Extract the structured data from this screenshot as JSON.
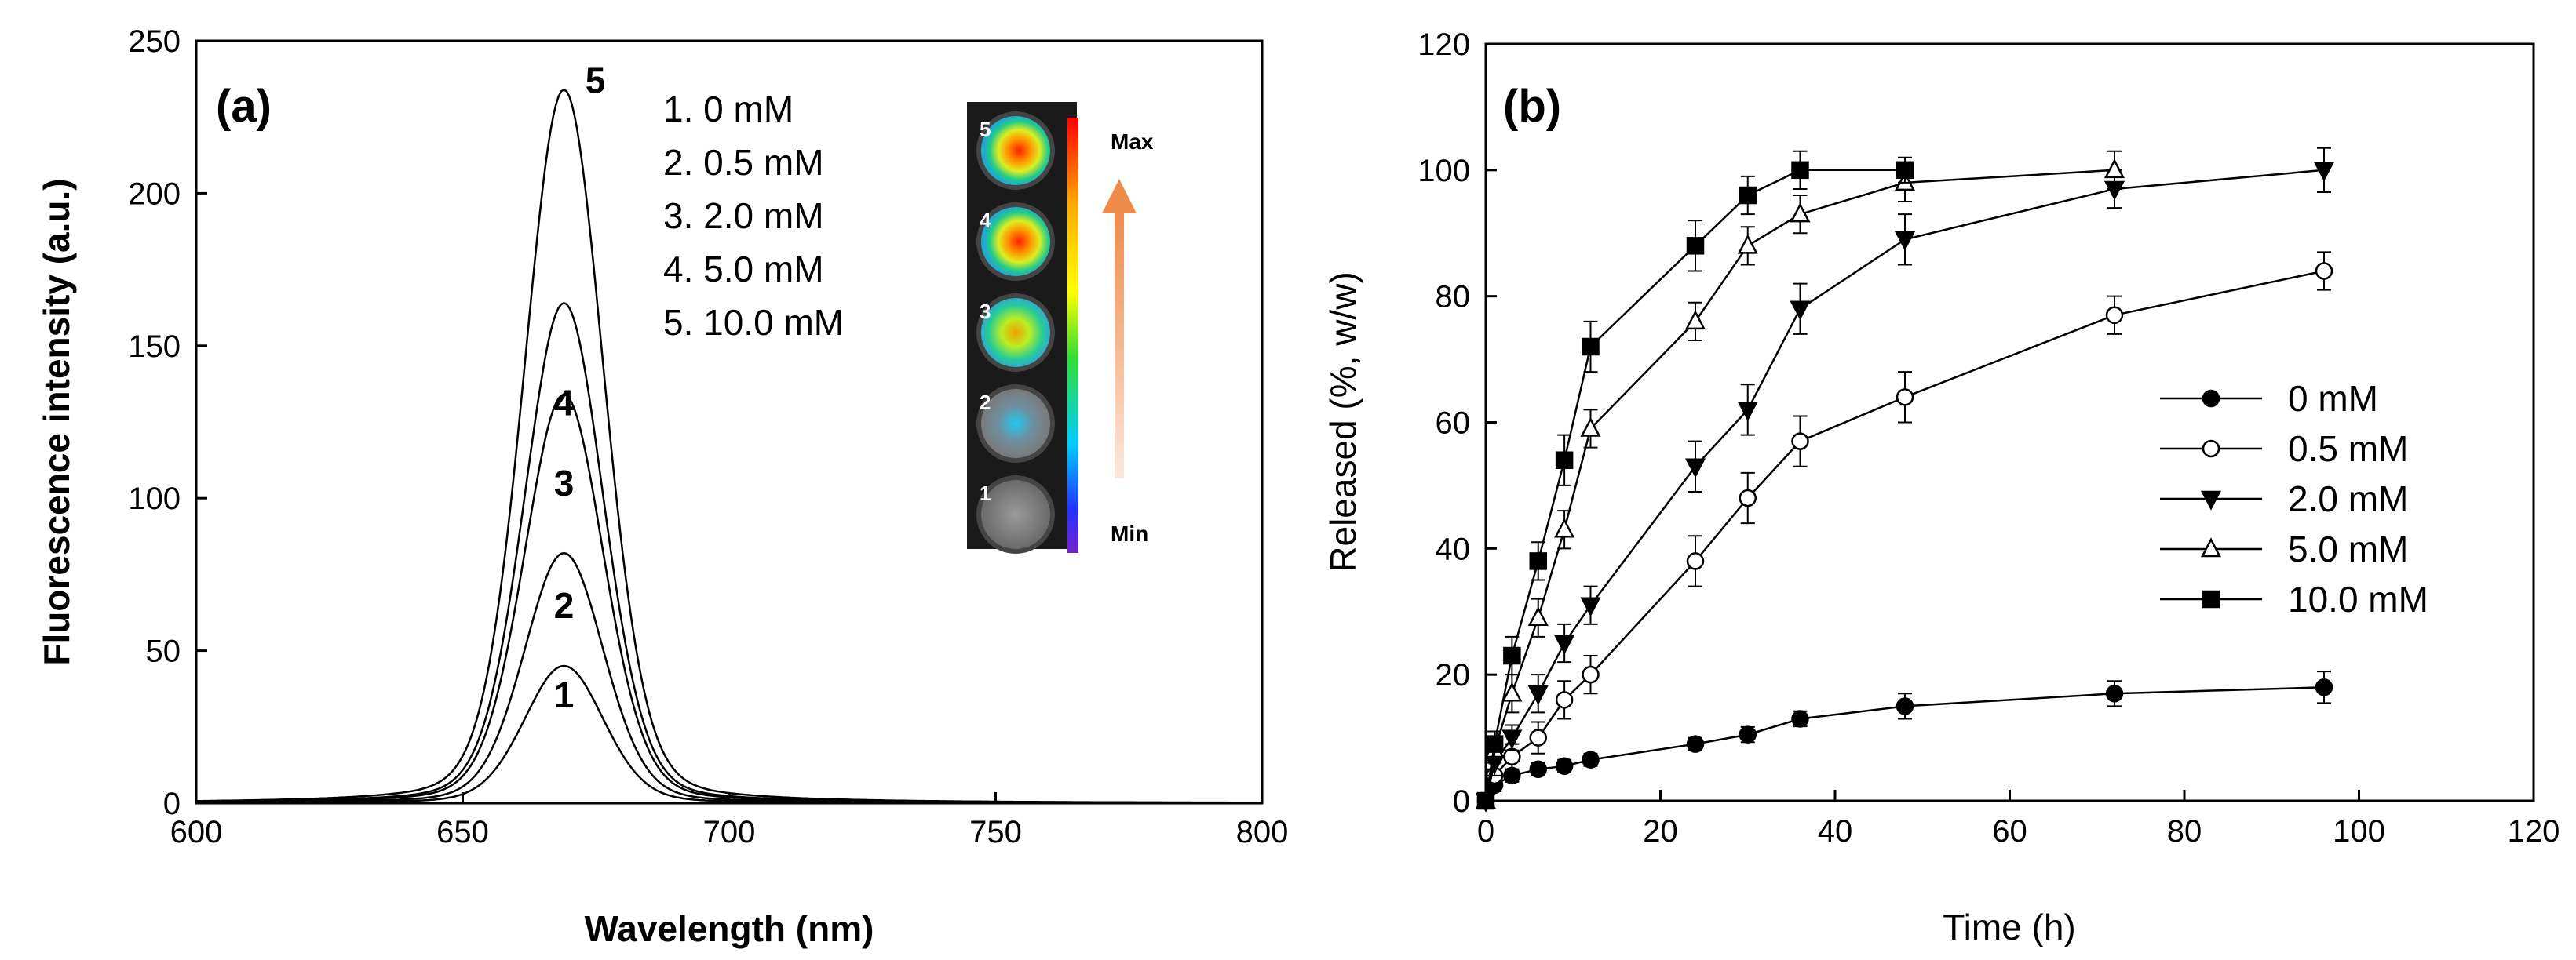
{
  "chart_data": [
    {
      "id": "a",
      "type": "line",
      "panel_label": "(a)",
      "xlabel": "Wavelength (nm)",
      "ylabel": "Fluorescence intensity (a.u.)",
      "xlim": [
        600,
        800
      ],
      "ylim": [
        0,
        250
      ],
      "xticks": [
        "600",
        "650",
        "700",
        "750",
        "800"
      ],
      "yticks": [
        "0",
        "50",
        "100",
        "150",
        "200",
        "250"
      ],
      "peak_wavelength": 669,
      "series": [
        {
          "name": "1",
          "concentration": "0 mM",
          "peak": 45,
          "curve_label": "1"
        },
        {
          "name": "2",
          "concentration": "0.5 mM",
          "peak": 82,
          "curve_label": "2"
        },
        {
          "name": "3",
          "concentration": "2.0 mM",
          "peak": 134,
          "curve_label": "3"
        },
        {
          "name": "4",
          "concentration": "5.0 mM",
          "peak": 164,
          "curve_label": "4"
        },
        {
          "name": "5",
          "concentration": "10.0 mM",
          "peak": 234,
          "curve_label": "5"
        }
      ],
      "legend": [
        "1. 0 mM",
        "2. 0.5 mM",
        "3. 2.0 mM",
        "4. 5.0 mM",
        "5. 10.0 mM"
      ],
      "inset": {
        "max_label": "Max",
        "min_label": "Min",
        "well_labels": [
          "5",
          "4",
          "3",
          "2",
          "1"
        ],
        "well_intensity": [
          1.0,
          0.85,
          0.7,
          0.3,
          0.0
        ]
      }
    },
    {
      "id": "b",
      "type": "line",
      "panel_label": "(b)",
      "xlabel": "Time (h)",
      "ylabel": "Released (%, w/w)",
      "xlim": [
        0,
        120
      ],
      "ylim": [
        0,
        120
      ],
      "xticks": [
        "0",
        "20",
        "40",
        "60",
        "80",
        "100",
        "120"
      ],
      "yticks": [
        "0",
        "20",
        "40",
        "60",
        "80",
        "100",
        "120"
      ],
      "legend_position": "right-middle",
      "series": [
        {
          "name": "0 mM",
          "marker": "circle-filled",
          "x": [
            0,
            1,
            3,
            6,
            9,
            12,
            24,
            30,
            36,
            48,
            72,
            96
          ],
          "y": [
            0,
            2.5,
            4,
            5,
            5.5,
            6.5,
            9,
            10.5,
            13,
            15,
            17,
            18
          ],
          "err": [
            0.5,
            1,
            1,
            1,
            1,
            1,
            1,
            1.2,
            1.2,
            2,
            2,
            2.5
          ]
        },
        {
          "name": "0.5 mM",
          "marker": "circle-open",
          "x": [
            0,
            1,
            3,
            6,
            9,
            12,
            24,
            30,
            36,
            48,
            72,
            96
          ],
          "y": [
            0,
            4,
            7,
            10,
            16,
            20,
            38,
            48,
            57,
            64,
            77,
            84
          ],
          "err": [
            0.5,
            1,
            2,
            2.5,
            3,
            3,
            4,
            4,
            4,
            4,
            3,
            3
          ]
        },
        {
          "name": "2.0 mM",
          "marker": "triangle-down-filled",
          "x": [
            0,
            1,
            3,
            6,
            9,
            12,
            24,
            30,
            36,
            48,
            72,
            96
          ],
          "y": [
            0,
            6,
            10,
            17,
            25,
            31,
            53,
            62,
            78,
            89,
            97,
            100
          ],
          "err": [
            0.5,
            2,
            2,
            3,
            3,
            3,
            4,
            4,
            4,
            4,
            3,
            3.5
          ]
        },
        {
          "name": "5.0 mM",
          "marker": "triangle-up-open",
          "x": [
            0,
            1,
            3,
            6,
            9,
            12,
            24,
            30,
            36,
            48,
            72
          ],
          "y": [
            0,
            8,
            17,
            29,
            43,
            59,
            76,
            88,
            93,
            98,
            100
          ],
          "err": [
            0.5,
            2,
            3,
            3,
            3,
            3,
            3,
            3,
            3,
            3,
            3
          ]
        },
        {
          "name": "10.0 mM",
          "marker": "square-filled",
          "x": [
            0,
            1,
            3,
            6,
            9,
            12,
            24,
            30,
            36,
            48
          ],
          "y": [
            0,
            9,
            23,
            38,
            54,
            72,
            88,
            96,
            100,
            100
          ],
          "err": [
            0.5,
            2,
            3,
            3,
            4,
            4,
            4,
            3,
            3,
            2
          ]
        }
      ]
    }
  ]
}
